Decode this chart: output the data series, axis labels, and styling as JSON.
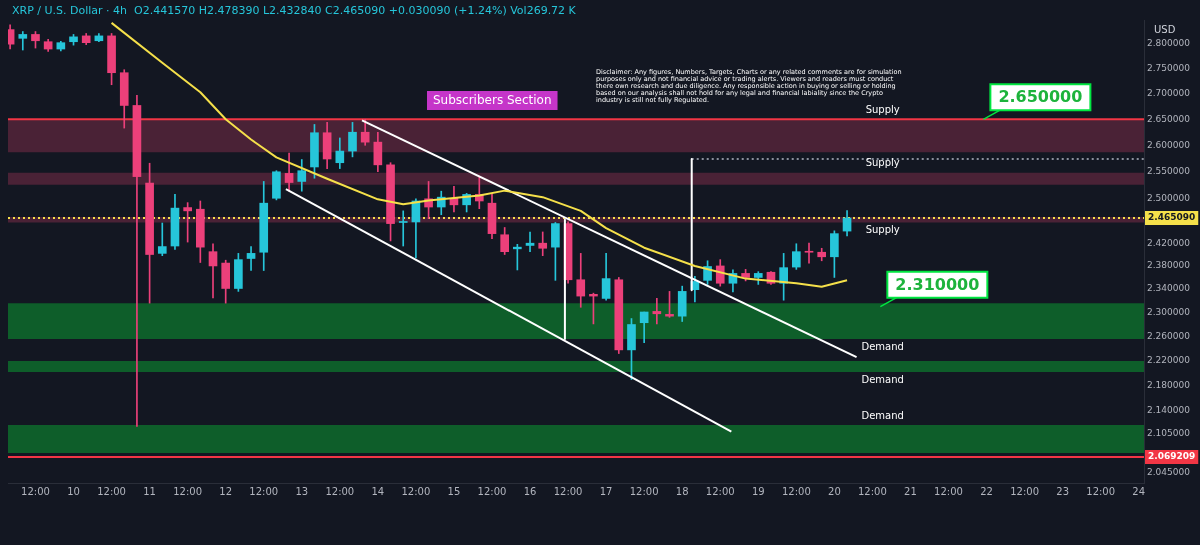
{
  "chart_data": {
    "type": "candlestick",
    "subtitle": "Subscribers Section",
    "ylabel": "USD",
    "annotations": [
      "XRP / U.S. Dollar · 4h  O2.441570 H2.478390 L2.432840 C2.465090 +0.030090 (+1.24%) Vol269.72 K",
      "Disclaimer: Any figures, Numbers, Targets, Charts or any related comments are for simulation purposes only and not financial advice or trading alerts. Viewers and readers must conduct there own research and due diligence. Any responsible action in buying or selling or holding based on our analysis shall not hold for any legal and financial labiality since the Crypto industry is still not fully Regulated.",
      {
        "text": "2.650000",
        "x": "--10-21T23:00",
        "y": 2.65
      },
      {
        "text": "2.310000",
        "x": "--10-20T14:30",
        "y": 2.31
      }
    ],
    "x": [
      "--10-09T04:00",
      "--10-09T08:00",
      "--10-09T12:00",
      "--10-09T16:00",
      "--10-09T20:00",
      "--10-10T00:00",
      "--10-10T04:00",
      "--10-10T08:00",
      "--10-10T12:00",
      "--10-10T16:00",
      "--10-10T20:00",
      "--10-11T00:00",
      "--10-11T04:00",
      "--10-11T08:00",
      "--10-11T12:00",
      "--10-11T16:00",
      "--10-11T20:00",
      "--10-12T00:00",
      "--10-12T04:00",
      "--10-12T08:00",
      "--10-12T12:00",
      "--10-12T16:00",
      "--10-12T20:00",
      "--10-13T00:00",
      "--10-13T04:00",
      "--10-13T08:00",
      "--10-13T12:00",
      "--10-13T16:00",
      "--10-13T20:00",
      "--10-14T00:00",
      "--10-14T04:00",
      "--10-14T08:00",
      "--10-14T12:00",
      "--10-14T16:00",
      "--10-14T20:00",
      "--10-15T00:00",
      "--10-15T04:00",
      "--10-15T08:00",
      "--10-15T12:00",
      "--10-15T16:00",
      "--10-15T20:00",
      "--10-16T00:00",
      "--10-16T04:00",
      "--10-16T08:00",
      "--10-16T12:00",
      "--10-16T16:00",
      "--10-16T20:00",
      "--10-17T00:00",
      "--10-17T04:00",
      "--10-17T08:00",
      "--10-17T12:00",
      "--10-17T16:00",
      "--10-17T20:00",
      "--10-18T00:00",
      "--10-18T04:00",
      "--10-18T08:00",
      "--10-18T12:00",
      "--10-18T16:00",
      "--10-18T20:00",
      "--10-19T00:00",
      "--10-19T04:00",
      "--10-19T08:00",
      "--10-19T12:00",
      "--10-19T16:00",
      "--10-19T20:00",
      "--10-20T00:00",
      "--10-20T04:00"
    ],
    "ohlc": [
      [
        2.83,
        2.84,
        2.79,
        2.8
      ],
      [
        2.812,
        2.826,
        2.788,
        2.82
      ],
      [
        2.82,
        2.826,
        2.792,
        2.807
      ],
      [
        2.805,
        2.81,
        2.785,
        2.79
      ],
      [
        2.79,
        2.806,
        2.786,
        2.803
      ],
      [
        2.805,
        2.82,
        2.798,
        2.815
      ],
      [
        2.817,
        2.822,
        2.799,
        2.803
      ],
      [
        2.807,
        2.822,
        2.805,
        2.817
      ],
      [
        2.817,
        2.822,
        2.718,
        2.742
      ],
      [
        2.742,
        2.748,
        2.633,
        2.677
      ],
      [
        2.677,
        2.697,
        2.116,
        2.541
      ],
      [
        2.529,
        2.566,
        2.316,
        2.4
      ],
      [
        2.402,
        2.456,
        2.398,
        2.414
      ],
      [
        2.415,
        2.508,
        2.409,
        2.483
      ],
      [
        2.484,
        2.493,
        2.422,
        2.478
      ],
      [
        2.481,
        2.496,
        2.386,
        2.413
      ],
      [
        2.405,
        2.419,
        2.325,
        2.38
      ],
      [
        2.385,
        2.39,
        2.316,
        2.341
      ],
      [
        2.341,
        2.402,
        2.336,
        2.391
      ],
      [
        2.393,
        2.414,
        2.372,
        2.402
      ],
      [
        2.404,
        2.532,
        2.372,
        2.492
      ],
      [
        2.501,
        2.552,
        2.498,
        2.55
      ],
      [
        2.547,
        2.585,
        2.514,
        2.53
      ],
      [
        2.532,
        2.573,
        2.514,
        2.552
      ],
      [
        2.559,
        2.64,
        2.538,
        2.624
      ],
      [
        2.624,
        2.644,
        2.556,
        2.574
      ],
      [
        2.567,
        2.614,
        2.556,
        2.589
      ],
      [
        2.589,
        2.644,
        2.578,
        2.625
      ],
      [
        2.625,
        2.65,
        2.6,
        2.606
      ],
      [
        2.606,
        2.625,
        2.55,
        2.563
      ],
      [
        2.563,
        2.567,
        2.424,
        2.455
      ],
      [
        2.457,
        2.478,
        2.415,
        2.458
      ],
      [
        2.458,
        2.5,
        2.394,
        2.496
      ],
      [
        2.5,
        2.532,
        2.464,
        2.485
      ],
      [
        2.485,
        2.514,
        2.471,
        2.503
      ],
      [
        2.501,
        2.523,
        2.476,
        2.489
      ],
      [
        2.489,
        2.51,
        2.476,
        2.508
      ],
      [
        2.508,
        2.541,
        2.482,
        2.496
      ],
      [
        2.492,
        2.51,
        2.428,
        2.437
      ],
      [
        2.435,
        2.448,
        2.4,
        2.405
      ],
      [
        2.41,
        2.418,
        2.373,
        2.413
      ],
      [
        2.416,
        2.44,
        2.405,
        2.42
      ],
      [
        2.42,
        2.44,
        2.398,
        2.411
      ],
      [
        2.413,
        2.457,
        2.355,
        2.455
      ],
      [
        2.455,
        2.458,
        2.35,
        2.356
      ],
      [
        2.356,
        2.402,
        2.309,
        2.328
      ],
      [
        2.331,
        2.333,
        2.281,
        2.328
      ],
      [
        2.324,
        2.402,
        2.321,
        2.358
      ],
      [
        2.356,
        2.36,
        2.232,
        2.238
      ],
      [
        2.238,
        2.29,
        2.19,
        2.28
      ],
      [
        2.283,
        2.301,
        2.25,
        2.301
      ],
      [
        2.302,
        2.324,
        2.281,
        2.298
      ],
      [
        2.297,
        2.336,
        2.292,
        2.294
      ],
      [
        2.294,
        2.345,
        2.285,
        2.336
      ],
      [
        2.339,
        2.362,
        2.318,
        2.353
      ],
      [
        2.355,
        2.389,
        2.348,
        2.379
      ],
      [
        2.38,
        2.391,
        2.345,
        2.35
      ],
      [
        2.35,
        2.373,
        2.335,
        2.367
      ],
      [
        2.367,
        2.374,
        2.354,
        2.36
      ],
      [
        2.36,
        2.37,
        2.348,
        2.367
      ],
      [
        2.369,
        2.37,
        2.348,
        2.35
      ],
      [
        2.35,
        2.402,
        2.321,
        2.377
      ],
      [
        2.378,
        2.419,
        2.374,
        2.405
      ],
      [
        2.405,
        2.42,
        2.385,
        2.404
      ],
      [
        2.404,
        2.411,
        2.389,
        2.396
      ],
      [
        2.396,
        2.442,
        2.36,
        2.437
      ],
      [
        2.44157,
        2.47839,
        2.43284,
        2.46509
      ]
    ],
    "colors": [
      "#ec407a",
      "#26c6da",
      "#ec407a",
      "#ec407a",
      "#26c6da",
      "#26c6da",
      "#ec407a",
      "#26c6da",
      "#ec407a",
      "#ec407a",
      "#ec407a",
      "#ec407a",
      "#26c6da",
      "#26c6da",
      "#ec407a",
      "#ec407a",
      "#ec407a",
      "#ec407a",
      "#26c6da",
      "#26c6da",
      "#26c6da",
      "#26c6da",
      "#ec407a",
      "#26c6da",
      "#26c6da",
      "#ec407a",
      "#26c6da",
      "#26c6da",
      "#ec407a",
      "#ec407a",
      "#ec407a",
      "#26c6da",
      "#26c6da",
      "#ec407a",
      "#26c6da",
      "#ec407a",
      "#26c6da",
      "#ec407a",
      "#ec407a",
      "#ec407a",
      "#26c6da",
      "#26c6da",
      "#ec407a",
      "#26c6da",
      "#ec407a",
      "#ec407a",
      "#ec407a",
      "#26c6da",
      "#ec407a",
      "#26c6da",
      "#26c6da",
      "#ec407a",
      "#ec407a",
      "#26c6da",
      "#26c6da",
      "#26c6da",
      "#ec407a",
      "#26c6da",
      "#ec407a",
      "#26c6da",
      "#ec407a",
      "#26c6da",
      "#26c6da",
      "#ec407a",
      "#ec407a",
      "#26c6da",
      "#26c6da"
    ],
    "series": [
      {
        "type": "line",
        "color": "#f5e04a",
        "x": [
          "--10-10T12:00",
          "--10-11T04:00",
          "--10-11T16:00",
          "--10-12T00:00",
          "--10-12T08:00",
          "--10-12T16:00",
          "--10-13T08:00",
          "--10-14T00:00",
          "--10-14T08:00",
          "--10-14T16:00",
          "--10-15T08:00",
          "--10-15T16:00",
          "--10-16T04:00",
          "--10-16T16:00",
          "--10-17T00:00",
          "--10-17T12:00",
          "--10-18T04:00",
          "--10-18T20:00",
          "--10-19T12:00",
          "--10-19T20:00",
          "--10-20T04:00"
        ],
        "values": [
          2.844,
          2.762,
          2.703,
          2.65,
          2.611,
          2.577,
          2.537,
          2.499,
          2.49,
          2.497,
          2.506,
          2.515,
          2.503,
          2.478,
          2.447,
          2.412,
          2.38,
          2.358,
          2.35,
          2.344,
          2.355
        ]
      },
      {
        "type": "line",
        "color": "#ffffff",
        "x": [
          "--10-13T19:00",
          "--10-20T07:00"
        ],
        "values": [
          2.648,
          2.226
        ]
      },
      {
        "type": "line",
        "color": "#ffffff",
        "x": [
          "--10-12T19:00",
          "--10-18T15:30"
        ],
        "values": [
          2.518,
          2.108
        ]
      },
      {
        "type": "line",
        "color": "#ffffff",
        "x": [
          "--10-16T11:00",
          "--10-16T11:00"
        ],
        "values": [
          2.462,
          2.256
        ]
      },
      {
        "type": "line",
        "color": "#ffffff",
        "x": [
          "--10-18T03:00",
          "--10-18T03:00"
        ],
        "values": [
          2.574,
          2.338
        ]
      },
      {
        "type": "line",
        "color": "#8a8f9c",
        "line_style": "dotted",
        "x": [
          "--10-18T03:00",
          "--10-24T01:40"
        ],
        "values": [
          2.574,
          2.574
        ]
      }
    ],
    "bands": [
      {
        "axis": "y",
        "from": 2.587,
        "to": 2.65,
        "label": "Supply",
        "color": "#4a2236"
      },
      {
        "axis": "y",
        "from": 2.526,
        "to": 2.548,
        "label": "Supply",
        "color": "#4a2236"
      },
      {
        "axis": "y",
        "from": 2.457,
        "to": 2.467,
        "label": "Supply",
        "color": "#4a2236"
      },
      {
        "axis": "y",
        "from": 2.256,
        "to": 2.316,
        "label": "Demand",
        "color": "#0e5e2a"
      },
      {
        "axis": "y",
        "from": 2.202,
        "to": 2.22,
        "label": "Demand",
        "color": "#0e5e2a"
      },
      {
        "axis": "y",
        "from": 2.075,
        "to": 2.118,
        "label": "Demand",
        "color": "#0e5e2a"
      }
    ],
    "ref_lines": [
      {
        "axis": "y",
        "value": 2.65,
        "label": null,
        "color": "#f23645"
      },
      {
        "axis": "y",
        "value": 2.46509,
        "label": "2.465090",
        "color": "#f5e04a",
        "line_style": "dotted"
      },
      {
        "axis": "y",
        "value": 2.069209,
        "label": "2.069209",
        "color": "#f23645"
      }
    ],
    "log": true,
    "legend": false,
    "grid": false,
    "xlim": [
      "--10-09T03:20",
      "--10-24T01:40"
    ],
    "xticks": [
      {
        "value": "--10-09T12:00",
        "label": "12:00"
      },
      {
        "value": "--10-10",
        "label": "10"
      },
      {
        "value": "--10-10T12:00",
        "label": "12:00"
      },
      {
        "value": "--10-11",
        "label": "11"
      },
      {
        "value": "--10-11T12:00",
        "label": "12:00"
      },
      {
        "value": "--10-12",
        "label": "12"
      },
      {
        "value": "--10-12T12:00",
        "label": "12:00"
      },
      {
        "value": "--10-13",
        "label": "13"
      },
      {
        "value": "--10-13T12:00",
        "label": "12:00"
      },
      {
        "value": "--10-14",
        "label": "14"
      },
      {
        "value": "--10-14T12:00",
        "label": "12:00"
      },
      {
        "value": "--10-15",
        "label": "15"
      },
      {
        "value": "--10-15T12:00",
        "label": "12:00"
      },
      {
        "value": "--10-16",
        "label": "16"
      },
      {
        "value": "--10-16T12:00",
        "label": "12:00"
      },
      {
        "value": "--10-17",
        "label": "17"
      },
      {
        "value": "--10-17T12:00",
        "label": "12:00"
      },
      {
        "value": "--10-18",
        "label": "18"
      },
      {
        "value": "--10-18T12:00",
        "label": "12:00"
      },
      {
        "value": "--10-19",
        "label": "19"
      },
      {
        "value": "--10-19T12:00",
        "label": "12:00"
      },
      {
        "value": "--10-20",
        "label": "20"
      },
      {
        "value": "--10-20T12:00",
        "label": "12:00"
      },
      {
        "value": "--10-21",
        "label": "21"
      },
      {
        "value": "--10-21T12:00",
        "label": "12:00"
      },
      {
        "value": "--10-22",
        "label": "22"
      },
      {
        "value": "--10-22T12:00",
        "label": "12:00"
      },
      {
        "value": "--10-23",
        "label": "23"
      },
      {
        "value": "--10-23T12:00",
        "label": "12:00"
      },
      {
        "value": "--10-24",
        "label": "24"
      }
    ],
    "ylim": [
      2.03,
      2.85
    ],
    "yticks": [
      {
        "value": 2.045,
        "label": "2.045000"
      },
      {
        "value": 2.105,
        "label": "2.105000"
      },
      {
        "value": 2.14,
        "label": "2.140000"
      },
      {
        "value": 2.18,
        "label": "2.180000"
      },
      {
        "value": 2.22,
        "label": "2.220000"
      },
      {
        "value": 2.26,
        "label": "2.260000"
      },
      {
        "value": 2.3,
        "label": "2.300000"
      },
      {
        "value": 2.34,
        "label": "2.340000"
      },
      {
        "value": 2.38,
        "label": "2.380000"
      },
      {
        "value": 2.42,
        "label": "2.420000"
      },
      {
        "value": 2.5,
        "label": "2.500000"
      },
      {
        "value": 2.55,
        "label": "2.550000"
      },
      {
        "value": 2.6,
        "label": "2.600000"
      },
      {
        "value": 2.65,
        "label": "2.650000"
      },
      {
        "value": 2.7,
        "label": "2.700000"
      },
      {
        "value": 2.75,
        "label": "2.750000"
      },
      {
        "value": 2.8,
        "label": "2.800000"
      }
    ]
  }
}
